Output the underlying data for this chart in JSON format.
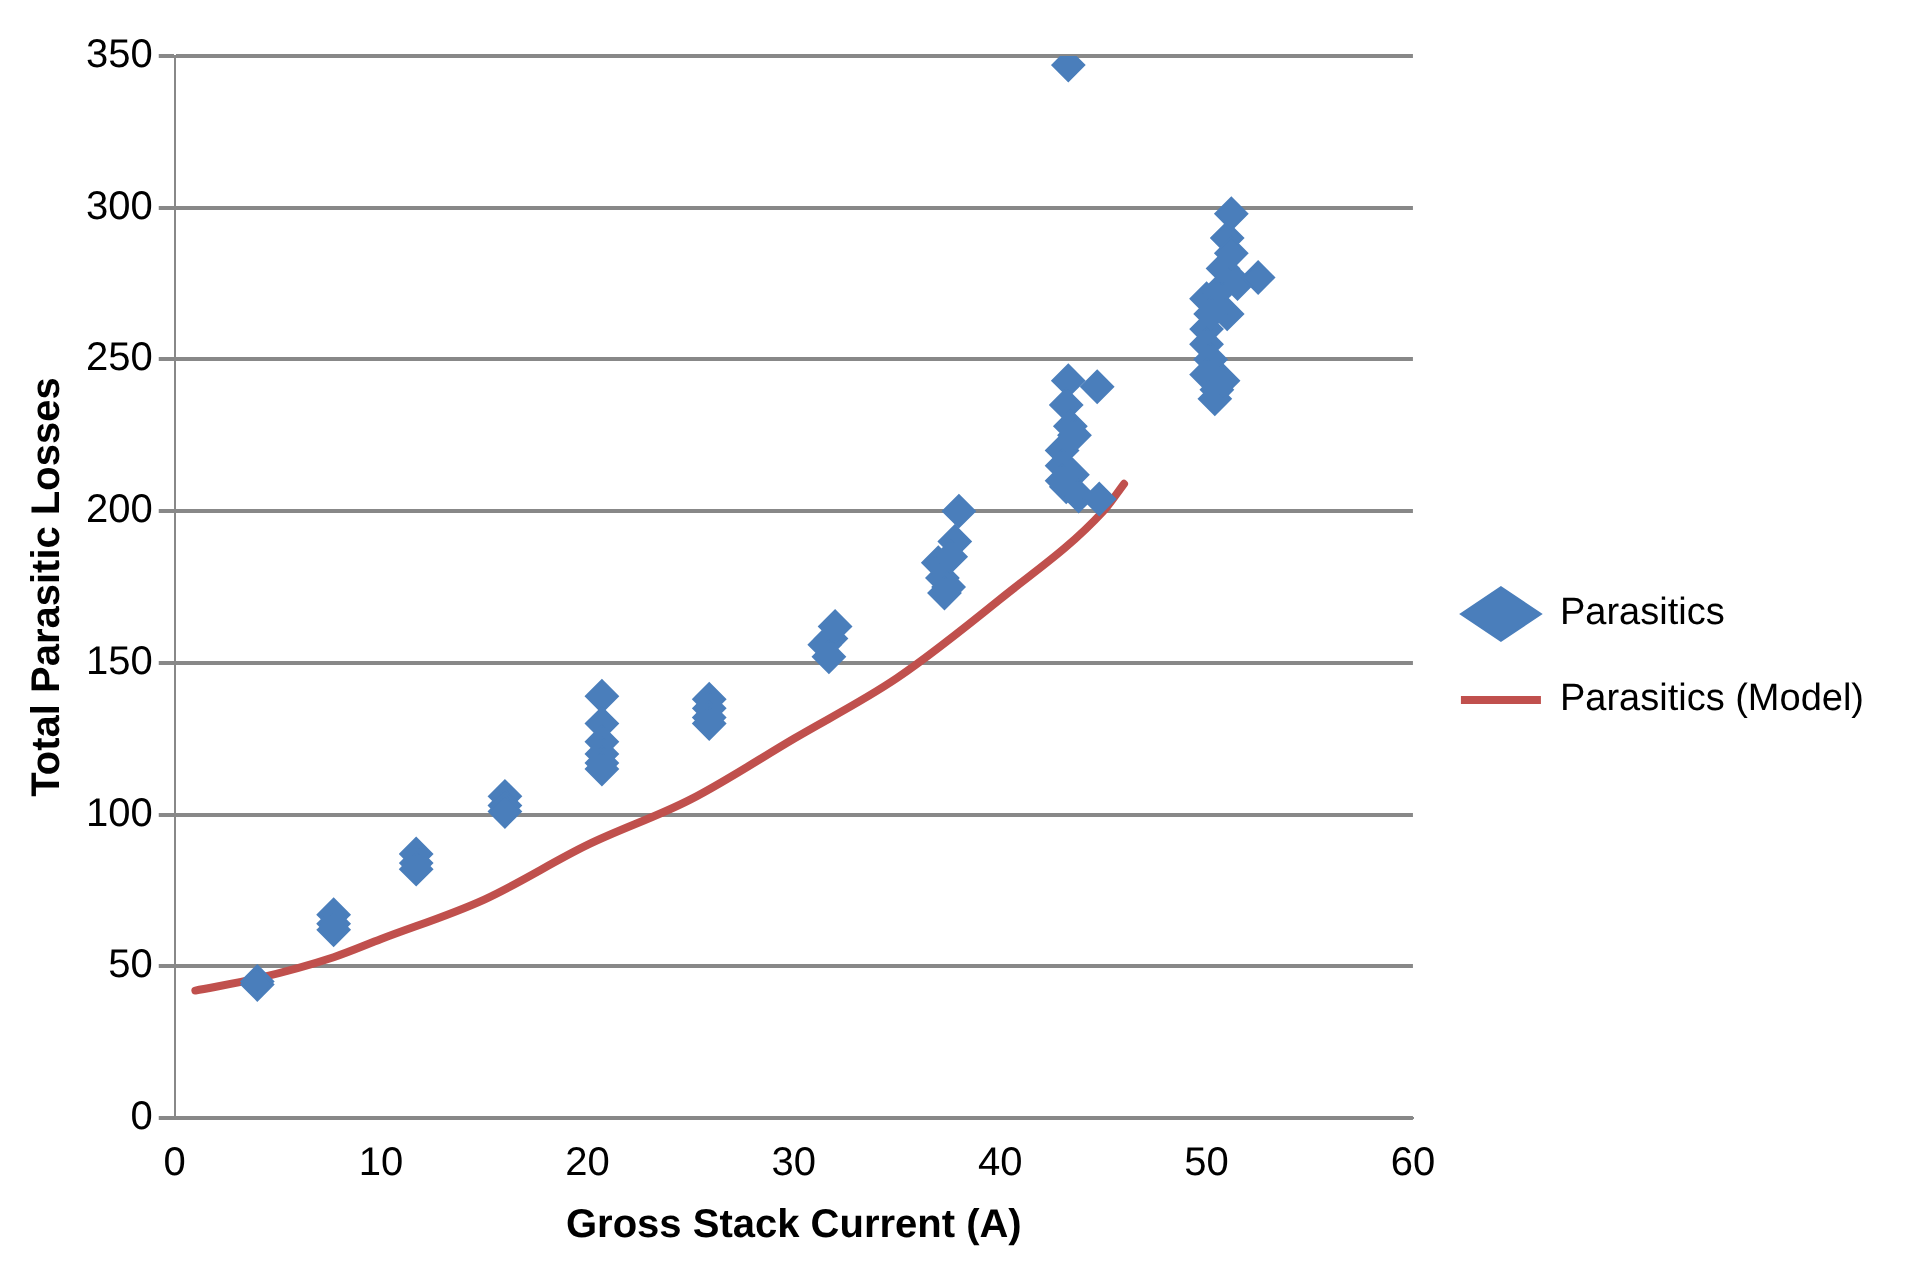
{
  "chart_data": {
    "type": "scatter",
    "xlabel": "Gross Stack Current (A)",
    "ylabel": "Total Parasitic Losses",
    "xlim": [
      0,
      60
    ],
    "xticks": [
      0,
      10,
      20,
      30,
      40,
      50,
      60
    ],
    "ylim": [
      0,
      350
    ],
    "yticks": [
      0,
      50,
      100,
      150,
      200,
      250,
      300,
      350
    ],
    "grid": "y",
    "legend": "right",
    "series": [
      {
        "name": "Parasitics",
        "type": "scatter",
        "marker": "diamond",
        "color": "#4a7ebb",
        "x": [
          4,
          4,
          7.7,
          7.7,
          7.7,
          11.7,
          11.7,
          11.7,
          16,
          16,
          16,
          20.7,
          20.7,
          20.7,
          20.7,
          20.7,
          20.7,
          25.9,
          25.9,
          25.9,
          25.9,
          31.5,
          31.8,
          32,
          31.7,
          37,
          37.2,
          37.5,
          37.8,
          38,
          37.3,
          37.6,
          43.3,
          43.3,
          43.2,
          43.4,
          43,
          43,
          43.5,
          43.2,
          43.8,
          44.7,
          44.8,
          43.6,
          43,
          50,
          50.5,
          51,
          51.2,
          50.8,
          50,
          50,
          50.2,
          50,
          50.5,
          50.4,
          51,
          51.5,
          52.5,
          50.8,
          50.2,
          51.2
        ],
        "values": [
          45,
          44,
          67,
          64,
          62,
          87,
          84,
          82,
          106,
          103,
          101,
          139,
          130,
          124,
          120,
          117,
          115,
          138,
          135,
          132,
          130,
          156,
          158,
          162,
          152,
          183,
          178,
          175,
          190,
          200,
          173,
          185,
          347,
          243,
          235,
          228,
          220,
          215,
          212,
          208,
          205,
          241,
          204,
          225,
          210,
          270,
          272,
          290,
          298,
          280,
          260,
          255,
          250,
          245,
          240,
          237,
          265,
          275,
          277,
          243,
          265,
          285
        ]
      },
      {
        "name": "Parasitics (Model)",
        "type": "line",
        "marker": "none",
        "line_style": "solid",
        "color": "#c0504d",
        "x": [
          1,
          4,
          7.7,
          10,
          15,
          20,
          25,
          30,
          35,
          40,
          45,
          46
        ],
        "values": [
          42,
          46,
          53,
          59,
          72,
          90,
          105,
          125,
          145,
          171,
          200,
          209
        ]
      }
    ]
  }
}
